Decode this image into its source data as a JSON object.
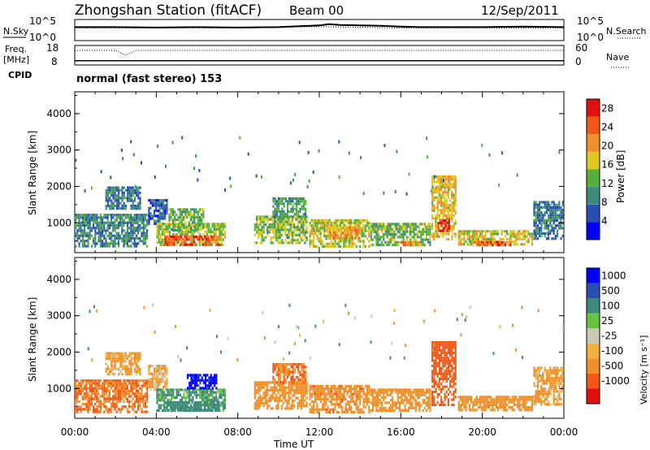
{
  "header": {
    "title": "Zhongshan Station (fitACF)",
    "beam": "Beam 00",
    "date": "12/Sep/2011",
    "mode": "normal (fast stereo) 153"
  },
  "side_labels": {
    "nsky": "N.Sky",
    "freq": "Freq.",
    "freq_unit": "[MHz]",
    "cpid": "CPID",
    "nsearch": "N.Search",
    "nave": "Nave"
  },
  "colors": {
    "power_scale": [
      "#0000ff",
      "#2a4fb4",
      "#3d8a7a",
      "#58b03c",
      "#e0c81e",
      "#f09028",
      "#f05818",
      "#e01010"
    ],
    "velocity_scale": [
      "#e01010",
      "#f05818",
      "#f09028",
      "#f0b040",
      "#c8c8b4",
      "#68c440",
      "#3d8a7a",
      "#2a4fb4",
      "#0000ff"
    ]
  },
  "chart_data": [
    {
      "type": "line",
      "title": "N.Sky / N.Search",
      "ylabel": "N.Sky",
      "y_ticks_left": [
        "10^5",
        "10^0"
      ],
      "y_ticks_right": [
        "10^5",
        "10^0"
      ],
      "ylim": [
        0,
        5
      ],
      "x_range_hours": [
        0,
        24
      ],
      "series": [
        {
          "name": "N.Sky",
          "x": [
            0,
            2,
            4,
            6,
            8,
            10,
            11,
            12,
            12.5,
            13,
            14,
            15,
            16,
            17,
            18,
            20,
            22,
            24
          ],
          "values": [
            3.2,
            3.2,
            3.1,
            3.2,
            3.1,
            3.2,
            3.4,
            3.6,
            3.9,
            3.7,
            3.6,
            3.5,
            3.3,
            3.2,
            3.2,
            3.2,
            3.3,
            3.2
          ]
        },
        {
          "name": "N.Search",
          "x": [
            0,
            4,
            8,
            12,
            16,
            20,
            24
          ],
          "values": [
            3.0,
            3.0,
            3.0,
            3.3,
            3.0,
            3.0,
            3.0
          ]
        }
      ]
    },
    {
      "type": "line",
      "title": "Freq / Nave",
      "ylabel": "Freq. [MHz]",
      "y_ticks_left": [
        "18",
        "8"
      ],
      "y_ticks_right": [
        "60",
        "0"
      ],
      "ylim": [
        8,
        18
      ],
      "series": [
        {
          "name": "Freq",
          "x": [
            0,
            24
          ],
          "values": [
            10.2,
            10.2
          ]
        },
        {
          "name": "Nave",
          "x": [
            0,
            2,
            2.5,
            3,
            4,
            24
          ],
          "values": [
            45,
            45,
            30,
            45,
            45,
            45
          ]
        }
      ]
    },
    {
      "type": "heatmap",
      "title": "Power",
      "ylabel": "Slant Range [km]",
      "xlabel": "Time UT",
      "x_ticks": [
        "00:00",
        "04:00",
        "08:00",
        "12:00",
        "16:00",
        "20:00",
        "00:00"
      ],
      "y_ticks": [
        "1000",
        "2000",
        "3000",
        "4000"
      ],
      "ylim": [
        180,
        4600
      ],
      "colorbar": {
        "label": "Power [dB]",
        "ticks": [
          "4",
          "8",
          "12",
          "16",
          "20",
          "24",
          "28"
        ],
        "range": [
          0,
          30
        ]
      },
      "blobs": [
        {
          "t0": 0.0,
          "t1": 3.6,
          "r0": 300,
          "r1": 1250,
          "v": 9
        },
        {
          "t0": 1.5,
          "t1": 3.3,
          "r0": 1300,
          "r1": 2000,
          "v": 8
        },
        {
          "t0": 3.6,
          "t1": 4.6,
          "r0": 900,
          "r1": 1650,
          "v": 6
        },
        {
          "t0": 4.0,
          "t1": 7.5,
          "r0": 300,
          "r1": 1000,
          "v": 15
        },
        {
          "t0": 4.4,
          "t1": 7.2,
          "r0": 300,
          "r1": 650,
          "v": 24
        },
        {
          "t0": 4.6,
          "t1": 6.4,
          "r0": 700,
          "r1": 1400,
          "v": 12
        },
        {
          "t0": 8.8,
          "t1": 11.5,
          "r0": 350,
          "r1": 1200,
          "v": 14
        },
        {
          "t0": 9.7,
          "t1": 11.4,
          "r0": 1100,
          "r1": 1700,
          "v": 11
        },
        {
          "t0": 11.5,
          "t1": 14.5,
          "r0": 300,
          "r1": 1100,
          "v": 16
        },
        {
          "t0": 12.5,
          "t1": 14.0,
          "r0": 500,
          "r1": 900,
          "v": 20
        },
        {
          "t0": 14.5,
          "t1": 17.5,
          "r0": 300,
          "r1": 1000,
          "v": 13
        },
        {
          "t0": 16.0,
          "t1": 17.0,
          "r0": 300,
          "r1": 500,
          "v": 22
        },
        {
          "t0": 17.5,
          "t1": 18.8,
          "r0": 500,
          "r1": 2300,
          "v": 18
        },
        {
          "t0": 17.8,
          "t1": 18.5,
          "r0": 700,
          "r1": 1100,
          "v": 27
        },
        {
          "t0": 18.8,
          "t1": 22.5,
          "r0": 300,
          "r1": 800,
          "v": 17
        },
        {
          "t0": 19.5,
          "t1": 21.5,
          "r0": 300,
          "r1": 500,
          "v": 25
        },
        {
          "t0": 22.5,
          "t1": 24.0,
          "r0": 500,
          "r1": 1600,
          "v": 8
        }
      ]
    },
    {
      "type": "heatmap",
      "title": "Velocity",
      "ylabel": "Slant Range [km]",
      "xlabel": "Time UT",
      "x_ticks": [
        "00:00",
        "04:00",
        "08:00",
        "12:00",
        "16:00",
        "20:00",
        "00:00"
      ],
      "y_ticks": [
        "1000",
        "2000",
        "3000",
        "4000"
      ],
      "ylim": [
        180,
        4600
      ],
      "colorbar": {
        "label": "Velocity [m s⁻¹]",
        "ticks": [
          "1000",
          "500",
          "100",
          "25",
          "-25",
          "-100",
          "-500",
          "-1000"
        ]
      },
      "blobs": [
        {
          "t0": 0.0,
          "t1": 3.6,
          "r0": 300,
          "r1": 1250,
          "v": -300
        },
        {
          "t0": 1.5,
          "t1": 3.3,
          "r0": 1300,
          "r1": 2000,
          "v": -80
        },
        {
          "t0": 3.6,
          "t1": 4.6,
          "r0": 900,
          "r1": 1650,
          "v": -60
        },
        {
          "t0": 4.0,
          "t1": 7.5,
          "r0": 300,
          "r1": 1000,
          "v": 80
        },
        {
          "t0": 4.4,
          "t1": 7.2,
          "r0": 300,
          "r1": 650,
          "v": 150
        },
        {
          "t0": 5.5,
          "t1": 7.0,
          "r0": 900,
          "r1": 1400,
          "v": 800
        },
        {
          "t0": 8.8,
          "t1": 11.5,
          "r0": 350,
          "r1": 1200,
          "v": -200
        },
        {
          "t0": 9.7,
          "t1": 11.4,
          "r0": 1100,
          "r1": 1700,
          "v": -300
        },
        {
          "t0": 11.5,
          "t1": 14.5,
          "r0": 300,
          "r1": 1100,
          "v": -250
        },
        {
          "t0": 14.5,
          "t1": 17.5,
          "r0": 300,
          "r1": 1000,
          "v": -200
        },
        {
          "t0": 17.5,
          "t1": 18.8,
          "r0": 500,
          "r1": 2300,
          "v": -350
        },
        {
          "t0": 18.8,
          "t1": 22.5,
          "r0": 300,
          "r1": 800,
          "v": -150
        },
        {
          "t0": 22.5,
          "t1": 24.0,
          "r0": 500,
          "r1": 1600,
          "v": -80
        }
      ]
    }
  ]
}
